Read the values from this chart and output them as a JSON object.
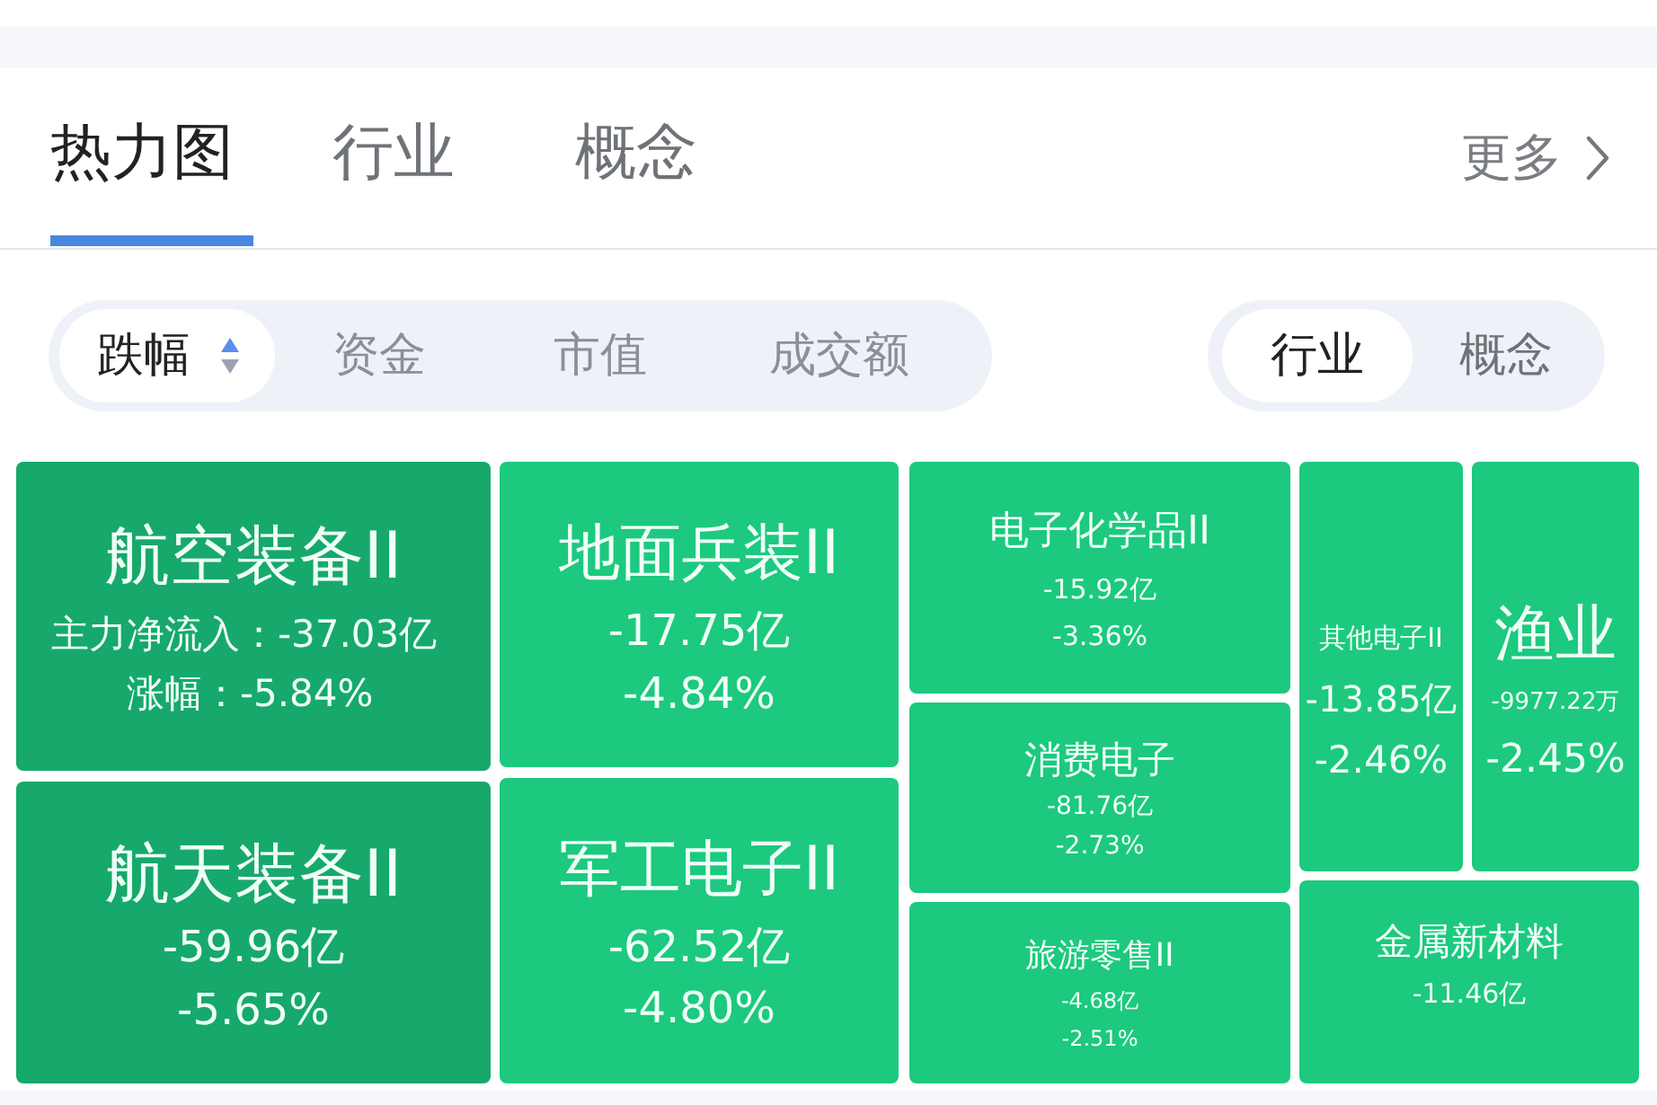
{
  "chart_data": {
    "type": "other",
    "title": "热力图",
    "categories": [
      "航空装备II",
      "航天装备II",
      "地面兵装II",
      "军工电子II",
      "电子化学品II",
      "消费电子",
      "旅游零售II",
      "其他电子II",
      "渔业",
      "金属新材料"
    ],
    "series": [
      {
        "name": "主力净流入：",
        "colors": [
          "#16a96b",
          "#16a96b",
          "#1cc97f",
          "#1cc97f",
          "#1cc97f",
          "#1cc97f",
          "#1cc97f",
          "#1cc97f",
          "#1cc97f",
          "#1cc97f"
        ],
        "values": [
          -37.03,
          -59.96,
          -17.75,
          -62.52,
          -15.92,
          -81.76,
          -4.68,
          -13.85,
          -9977.22,
          -11.46
        ],
        "value_labels": [
          "-37.03亿",
          "-59.96亿",
          "-17.75亿",
          "-62.52亿",
          "-15.92亿",
          "-81.76亿",
          "-4.68亿",
          "-13.85亿",
          "-9977.22万",
          "-11.46亿"
        ]
      },
      {
        "name": "涨幅：",
        "values": [
          -5.84,
          -5.65,
          -4.84,
          -4.8,
          -3.36,
          -2.73,
          -2.51,
          -2.46,
          -2.45,
          null
        ],
        "value_labels": [
          "-5.84%",
          "-5.65%",
          "-4.84%",
          "-4.80%",
          "-3.36%",
          "-2.73%",
          "-2.51%",
          "-2.46%",
          "-2.45%",
          null
        ]
      }
    ],
    "annotations": [
      "行业",
      "概念",
      "更多",
      "跌幅",
      "资金",
      "市值",
      "成交额",
      "行业",
      "概念"
    ]
  }
}
